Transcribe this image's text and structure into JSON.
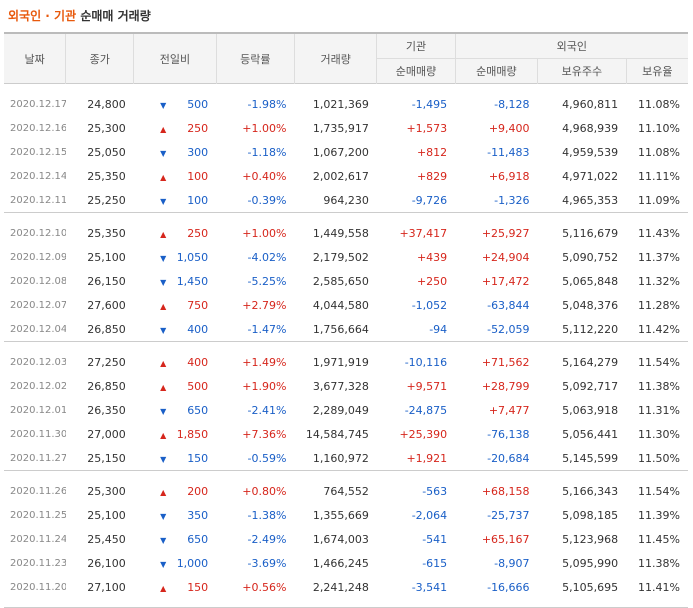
{
  "title": {
    "part1": "외국인 · 기관",
    "part2": "순매매 거래량"
  },
  "headers": {
    "date": "날짜",
    "close": "종가",
    "change": "전일비",
    "rate": "등락률",
    "volume": "거래량",
    "inst": "기관",
    "foreign": "외국인",
    "inst_net": "순매매량",
    "foreign_net": "순매매량",
    "holdings": "보유주수",
    "ratio": "보유율"
  },
  "colors": {
    "up": "#d6261c",
    "down": "#1a5fc7",
    "title_accent": "#e8590c"
  },
  "groups": [
    [
      {
        "date": "2020.12.17",
        "close": "24,800",
        "dir": "down",
        "change": "500",
        "rate": "-1.98%",
        "volume": "1,021,369",
        "inst": "-1,495",
        "foreign": "-8,128",
        "holdings": "4,960,811",
        "ratio": "11.08%"
      },
      {
        "date": "2020.12.16",
        "close": "25,300",
        "dir": "up",
        "change": "250",
        "rate": "+1.00%",
        "volume": "1,735,917",
        "inst": "+1,573",
        "foreign": "+9,400",
        "holdings": "4,968,939",
        "ratio": "11.10%"
      },
      {
        "date": "2020.12.15",
        "close": "25,050",
        "dir": "down",
        "change": "300",
        "rate": "-1.18%",
        "volume": "1,067,200",
        "inst": "+812",
        "foreign": "-11,483",
        "holdings": "4,959,539",
        "ratio": "11.08%"
      },
      {
        "date": "2020.12.14",
        "close": "25,350",
        "dir": "up",
        "change": "100",
        "rate": "+0.40%",
        "volume": "2,002,617",
        "inst": "+829",
        "foreign": "+6,918",
        "holdings": "4,971,022",
        "ratio": "11.11%"
      },
      {
        "date": "2020.12.11",
        "close": "25,250",
        "dir": "down",
        "change": "100",
        "rate": "-0.39%",
        "volume": "964,230",
        "inst": "-9,726",
        "foreign": "-1,326",
        "holdings": "4,965,353",
        "ratio": "11.09%"
      }
    ],
    [
      {
        "date": "2020.12.10",
        "close": "25,350",
        "dir": "up",
        "change": "250",
        "rate": "+1.00%",
        "volume": "1,449,558",
        "inst": "+37,417",
        "foreign": "+25,927",
        "holdings": "5,116,679",
        "ratio": "11.43%"
      },
      {
        "date": "2020.12.09",
        "close": "25,100",
        "dir": "down",
        "change": "1,050",
        "rate": "-4.02%",
        "volume": "2,179,502",
        "inst": "+439",
        "foreign": "+24,904",
        "holdings": "5,090,752",
        "ratio": "11.37%"
      },
      {
        "date": "2020.12.08",
        "close": "26,150",
        "dir": "down",
        "change": "1,450",
        "rate": "-5.25%",
        "volume": "2,585,650",
        "inst": "+250",
        "foreign": "+17,472",
        "holdings": "5,065,848",
        "ratio": "11.32%"
      },
      {
        "date": "2020.12.07",
        "close": "27,600",
        "dir": "up",
        "change": "750",
        "rate": "+2.79%",
        "volume": "4,044,580",
        "inst": "-1,052",
        "foreign": "-63,844",
        "holdings": "5,048,376",
        "ratio": "11.28%"
      },
      {
        "date": "2020.12.04",
        "close": "26,850",
        "dir": "down",
        "change": "400",
        "rate": "-1.47%",
        "volume": "1,756,664",
        "inst": "-94",
        "foreign": "-52,059",
        "holdings": "5,112,220",
        "ratio": "11.42%"
      }
    ],
    [
      {
        "date": "2020.12.03",
        "close": "27,250",
        "dir": "up",
        "change": "400",
        "rate": "+1.49%",
        "volume": "1,971,919",
        "inst": "-10,116",
        "foreign": "+71,562",
        "holdings": "5,164,279",
        "ratio": "11.54%"
      },
      {
        "date": "2020.12.02",
        "close": "26,850",
        "dir": "up",
        "change": "500",
        "rate": "+1.90%",
        "volume": "3,677,328",
        "inst": "+9,571",
        "foreign": "+28,799",
        "holdings": "5,092,717",
        "ratio": "11.38%"
      },
      {
        "date": "2020.12.01",
        "close": "26,350",
        "dir": "down",
        "change": "650",
        "rate": "-2.41%",
        "volume": "2,289,049",
        "inst": "-24,875",
        "foreign": "+7,477",
        "holdings": "5,063,918",
        "ratio": "11.31%"
      },
      {
        "date": "2020.11.30",
        "close": "27,000",
        "dir": "up",
        "change": "1,850",
        "rate": "+7.36%",
        "volume": "14,584,745",
        "inst": "+25,390",
        "foreign": "-76,138",
        "holdings": "5,056,441",
        "ratio": "11.30%"
      },
      {
        "date": "2020.11.27",
        "close": "25,150",
        "dir": "down",
        "change": "150",
        "rate": "-0.59%",
        "volume": "1,160,972",
        "inst": "+1,921",
        "foreign": "-20,684",
        "holdings": "5,145,599",
        "ratio": "11.50%"
      }
    ],
    [
      {
        "date": "2020.11.26",
        "close": "25,300",
        "dir": "up",
        "change": "200",
        "rate": "+0.80%",
        "volume": "764,552",
        "inst": "-563",
        "foreign": "+68,158",
        "holdings": "5,166,343",
        "ratio": "11.54%"
      },
      {
        "date": "2020.11.25",
        "close": "25,100",
        "dir": "down",
        "change": "350",
        "rate": "-1.38%",
        "volume": "1,355,669",
        "inst": "-2,064",
        "foreign": "-25,737",
        "holdings": "5,098,185",
        "ratio": "11.39%"
      },
      {
        "date": "2020.11.24",
        "close": "25,450",
        "dir": "down",
        "change": "650",
        "rate": "-2.49%",
        "volume": "1,674,003",
        "inst": "-541",
        "foreign": "+65,167",
        "holdings": "5,123,968",
        "ratio": "11.45%"
      },
      {
        "date": "2020.11.23",
        "close": "26,100",
        "dir": "down",
        "change": "1,000",
        "rate": "-3.69%",
        "volume": "1,466,245",
        "inst": "-615",
        "foreign": "-8,907",
        "holdings": "5,095,990",
        "ratio": "11.38%"
      },
      {
        "date": "2020.11.20",
        "close": "27,100",
        "dir": "up",
        "change": "150",
        "rate": "+0.56%",
        "volume": "2,241,248",
        "inst": "-3,541",
        "foreign": "-16,666",
        "holdings": "5,105,695",
        "ratio": "11.41%"
      }
    ]
  ]
}
